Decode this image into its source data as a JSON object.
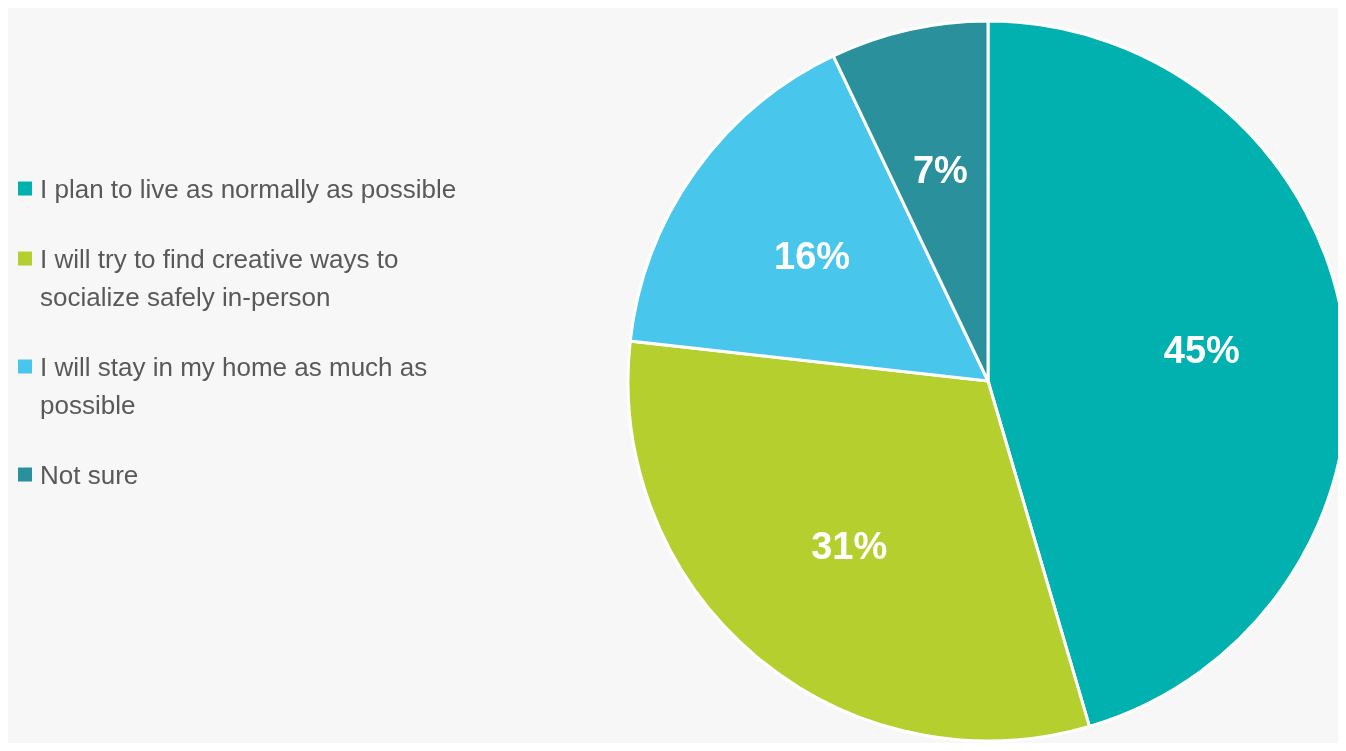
{
  "chart_data": {
    "type": "pie",
    "categories": [
      "I plan to live as normally as possible",
      "I will try to find creative ways to socialize safely in-person",
      "I will stay in my home as much as possible",
      "Not sure"
    ],
    "values": [
      45,
      31,
      16,
      7
    ],
    "colors": [
      "#00b1b0",
      "#b5cf2f",
      "#48c6ec",
      "#2a909c"
    ],
    "value_labels": [
      "45%",
      "31%",
      "16%",
      "7%"
    ],
    "legend": "left"
  }
}
